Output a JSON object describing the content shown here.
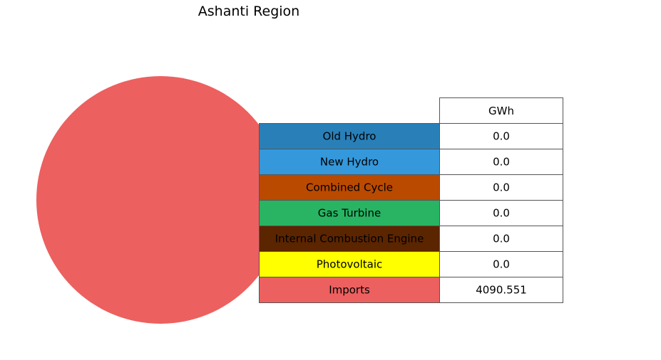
{
  "chart_data": {
    "type": "pie",
    "title": "Ashanti Region",
    "table_header": "GWh",
    "categories": [
      "Old Hydro",
      "New Hydro",
      "Combined Cycle",
      "Gas Turbine",
      "Internal Combustion Engine",
      "Photovoltaic",
      "Imports"
    ],
    "values": [
      0.0,
      0.0,
      0.0,
      0.0,
      0.0,
      0.0,
      4090.551
    ],
    "value_labels": [
      "0.0",
      "0.0",
      "0.0",
      "0.0",
      "0.0",
      "0.0",
      "4090.551"
    ],
    "colors": [
      "#2980b9",
      "#3498db",
      "#ba4a00",
      "#28b463",
      "#5b2500",
      "#ffff00",
      "#ec605f"
    ]
  }
}
